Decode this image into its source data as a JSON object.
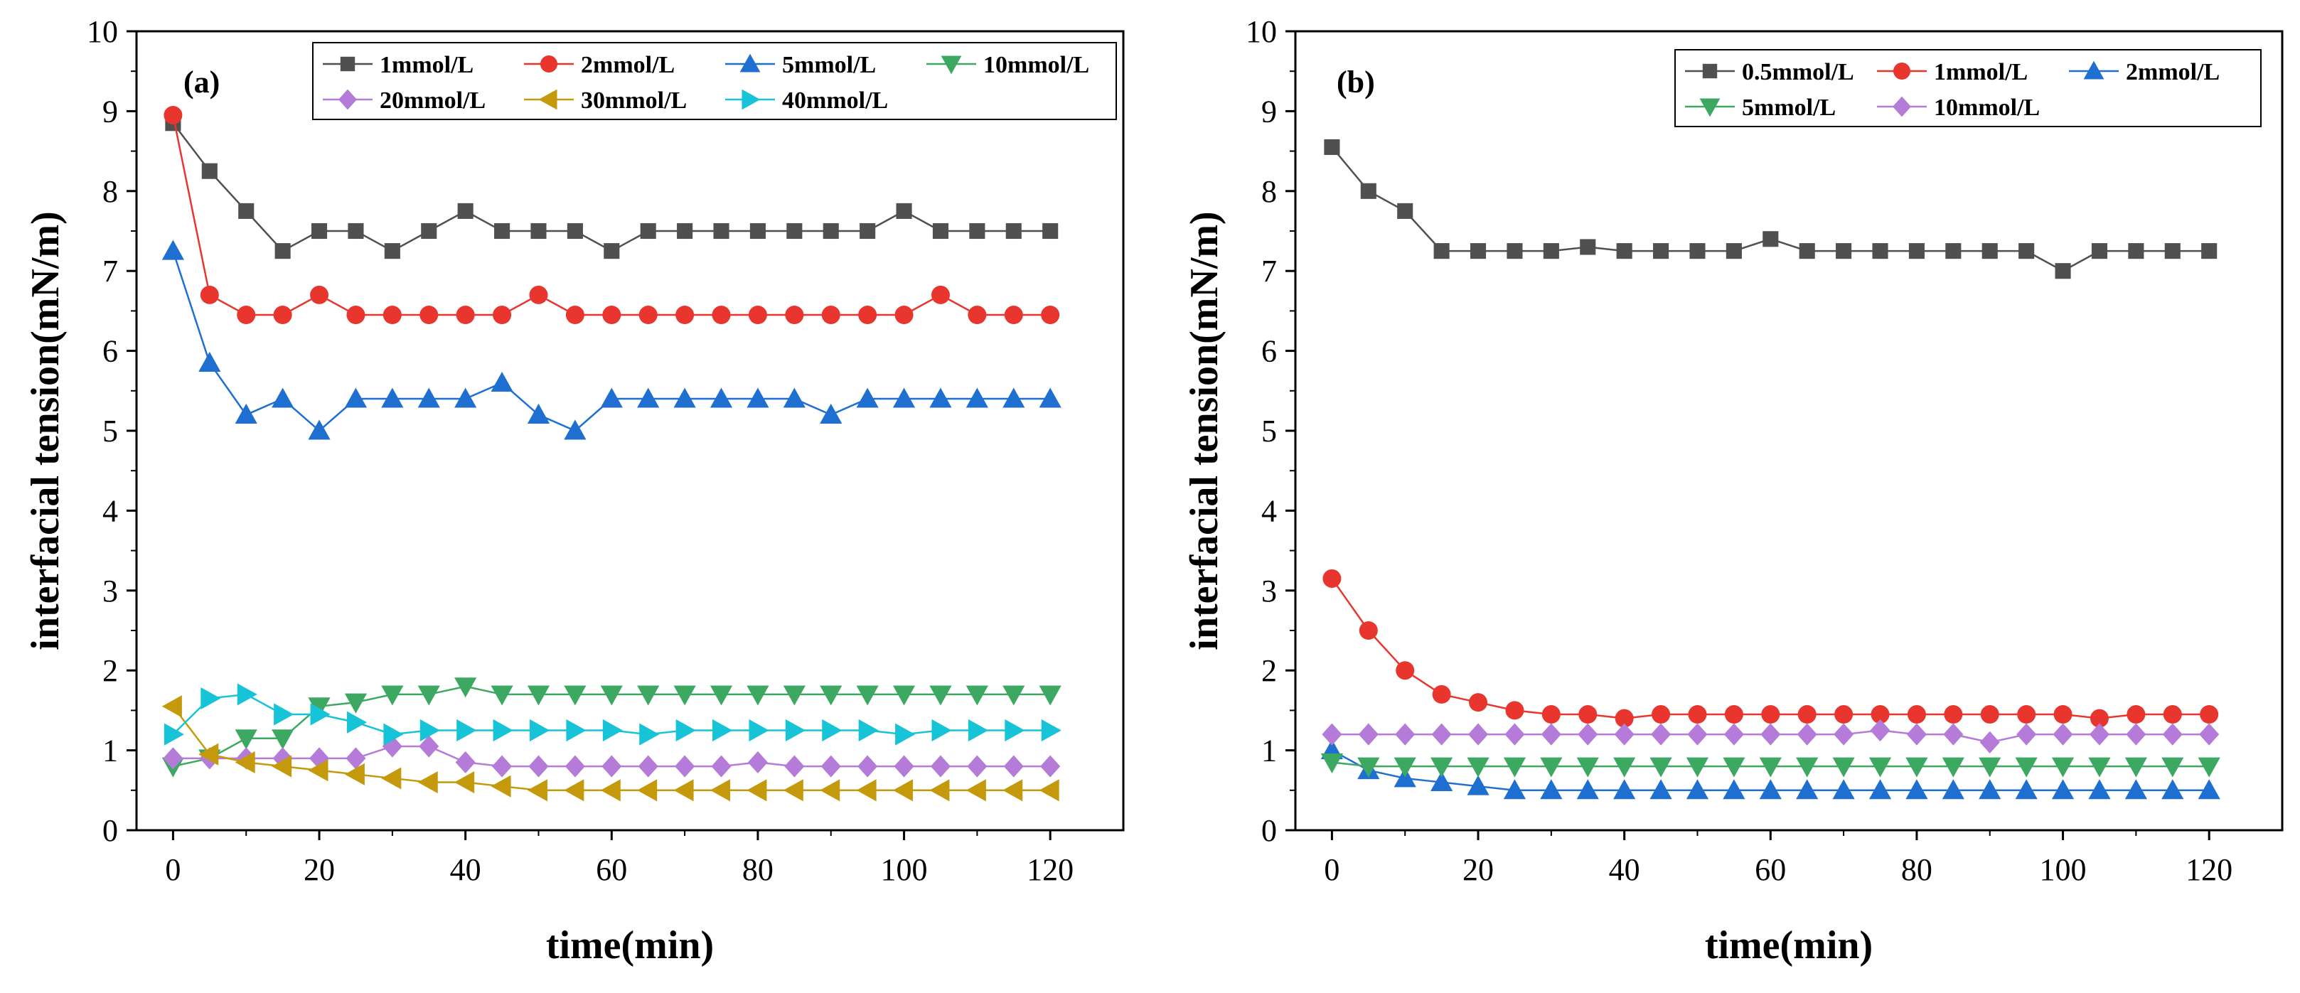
{
  "chart_data": [
    {
      "type": "line",
      "panel_label": "(a)",
      "xlabel": "time(min)",
      "ylabel": "interfacial tension(mN/m)",
      "xlim": [
        -5,
        130
      ],
      "ylim": [
        0,
        10
      ],
      "xticks": [
        0,
        20,
        40,
        60,
        80,
        100,
        120
      ],
      "yticks": [
        0,
        1,
        2,
        3,
        4,
        5,
        6,
        7,
        8,
        9,
        10
      ],
      "legend_position": "top-right",
      "legend_rows": [
        [
          0,
          1,
          2,
          3
        ],
        [
          4,
          5,
          6
        ]
      ],
      "x": [
        0,
        5,
        10,
        15,
        20,
        25,
        30,
        35,
        40,
        45,
        50,
        55,
        60,
        65,
        70,
        75,
        80,
        85,
        90,
        95,
        100,
        105,
        110,
        115,
        120
      ],
      "series": [
        {
          "name": "1mmol/L",
          "color": "#505050",
          "marker": "square",
          "values": [
            8.85,
            8.25,
            7.75,
            7.25,
            7.5,
            7.5,
            7.25,
            7.5,
            7.75,
            7.5,
            7.5,
            7.5,
            7.25,
            7.5,
            7.5,
            7.5,
            7.5,
            7.5,
            7.5,
            7.5,
            7.75,
            7.5,
            7.5,
            7.5,
            7.5
          ]
        },
        {
          "name": "2mmol/L",
          "color": "#e8352e",
          "marker": "circle",
          "values": [
            8.95,
            6.7,
            6.45,
            6.45,
            6.7,
            6.45,
            6.45,
            6.45,
            6.45,
            6.45,
            6.7,
            6.45,
            6.45,
            6.45,
            6.45,
            6.45,
            6.45,
            6.45,
            6.45,
            6.45,
            6.45,
            6.7,
            6.45,
            6.45,
            6.45
          ]
        },
        {
          "name": "5mmol/L",
          "color": "#1f6fd1",
          "marker": "triangle-up",
          "values": [
            7.25,
            5.85,
            5.2,
            5.4,
            5.0,
            5.4,
            5.4,
            5.4,
            5.4,
            5.6,
            5.2,
            5.0,
            5.4,
            5.4,
            5.4,
            5.4,
            5.4,
            5.4,
            5.2,
            5.4,
            5.4,
            5.4,
            5.4,
            5.4,
            5.4
          ]
        },
        {
          "name": "10mmol/L",
          "color": "#3ca862",
          "marker": "triangle-down",
          "values": [
            0.8,
            0.9,
            1.15,
            1.15,
            1.55,
            1.6,
            1.7,
            1.7,
            1.8,
            1.7,
            1.7,
            1.7,
            1.7,
            1.7,
            1.7,
            1.7,
            1.7,
            1.7,
            1.7,
            1.7,
            1.7,
            1.7,
            1.7,
            1.7,
            1.7
          ]
        },
        {
          "name": "20mmol/L",
          "color": "#b47cd8",
          "marker": "diamond",
          "values": [
            0.9,
            0.9,
            0.9,
            0.9,
            0.9,
            0.9,
            1.05,
            1.05,
            0.85,
            0.8,
            0.8,
            0.8,
            0.8,
            0.8,
            0.8,
            0.8,
            0.85,
            0.8,
            0.8,
            0.8,
            0.8,
            0.8,
            0.8,
            0.8,
            0.8
          ]
        },
        {
          "name": "30mmol/L",
          "color": "#c49a0c",
          "marker": "triangle-left",
          "values": [
            1.55,
            0.95,
            0.85,
            0.8,
            0.75,
            0.7,
            0.65,
            0.6,
            0.6,
            0.55,
            0.5,
            0.5,
            0.5,
            0.5,
            0.5,
            0.5,
            0.5,
            0.5,
            0.5,
            0.5,
            0.5,
            0.5,
            0.5,
            0.5,
            0.5
          ]
        },
        {
          "name": "40mmol/L",
          "color": "#17c3d6",
          "marker": "triangle-right",
          "values": [
            1.2,
            1.65,
            1.7,
            1.45,
            1.45,
            1.35,
            1.2,
            1.25,
            1.25,
            1.25,
            1.25,
            1.25,
            1.25,
            1.2,
            1.25,
            1.25,
            1.25,
            1.25,
            1.25,
            1.25,
            1.2,
            1.25,
            1.25,
            1.25,
            1.25
          ]
        }
      ]
    },
    {
      "type": "line",
      "panel_label": "(b)",
      "xlabel": "time(min)",
      "ylabel": "interfacial tension(mN/m)",
      "xlim": [
        -5,
        130
      ],
      "ylim": [
        0,
        10
      ],
      "xticks": [
        0,
        20,
        40,
        60,
        80,
        100,
        120
      ],
      "yticks": [
        0,
        1,
        2,
        3,
        4,
        5,
        6,
        7,
        8,
        9,
        10
      ],
      "legend_position": "top-right",
      "legend_rows": [
        [
          0,
          1,
          2
        ],
        [
          3,
          4
        ]
      ],
      "x": [
        0,
        5,
        10,
        15,
        20,
        25,
        30,
        35,
        40,
        45,
        50,
        55,
        60,
        65,
        70,
        75,
        80,
        85,
        90,
        95,
        100,
        105,
        110,
        115,
        120
      ],
      "series": [
        {
          "name": "0.5mmol/L",
          "color": "#505050",
          "marker": "square",
          "values": [
            8.55,
            8.0,
            7.75,
            7.25,
            7.25,
            7.25,
            7.25,
            7.3,
            7.25,
            7.25,
            7.25,
            7.25,
            7.4,
            7.25,
            7.25,
            7.25,
            7.25,
            7.25,
            7.25,
            7.25,
            7.0,
            7.25,
            7.25,
            7.25,
            7.25
          ]
        },
        {
          "name": "1mmol/L",
          "color": "#e8352e",
          "marker": "circle",
          "values": [
            3.15,
            2.5,
            2.0,
            1.7,
            1.6,
            1.5,
            1.45,
            1.45,
            1.4,
            1.45,
            1.45,
            1.45,
            1.45,
            1.45,
            1.45,
            1.45,
            1.45,
            1.45,
            1.45,
            1.45,
            1.45,
            1.4,
            1.45,
            1.45,
            1.45
          ]
        },
        {
          "name": "2mmol/L",
          "color": "#1f6fd1",
          "marker": "triangle-up",
          "values": [
            1.0,
            0.75,
            0.65,
            0.6,
            0.55,
            0.5,
            0.5,
            0.5,
            0.5,
            0.5,
            0.5,
            0.5,
            0.5,
            0.5,
            0.5,
            0.5,
            0.5,
            0.5,
            0.5,
            0.5,
            0.5,
            0.5,
            0.5,
            0.5,
            0.5
          ]
        },
        {
          "name": "5mmol/L",
          "color": "#3ca862",
          "marker": "triangle-down",
          "values": [
            0.85,
            0.8,
            0.8,
            0.8,
            0.8,
            0.8,
            0.8,
            0.8,
            0.8,
            0.8,
            0.8,
            0.8,
            0.8,
            0.8,
            0.8,
            0.8,
            0.8,
            0.8,
            0.8,
            0.8,
            0.8,
            0.8,
            0.8,
            0.8,
            0.8
          ]
        },
        {
          "name": "10mmol/L",
          "color": "#b47cd8",
          "marker": "diamond",
          "values": [
            1.2,
            1.2,
            1.2,
            1.2,
            1.2,
            1.2,
            1.2,
            1.2,
            1.2,
            1.2,
            1.2,
            1.2,
            1.2,
            1.2,
            1.2,
            1.25,
            1.2,
            1.2,
            1.1,
            1.2,
            1.2,
            1.2,
            1.2,
            1.2,
            1.2
          ]
        }
      ]
    }
  ]
}
